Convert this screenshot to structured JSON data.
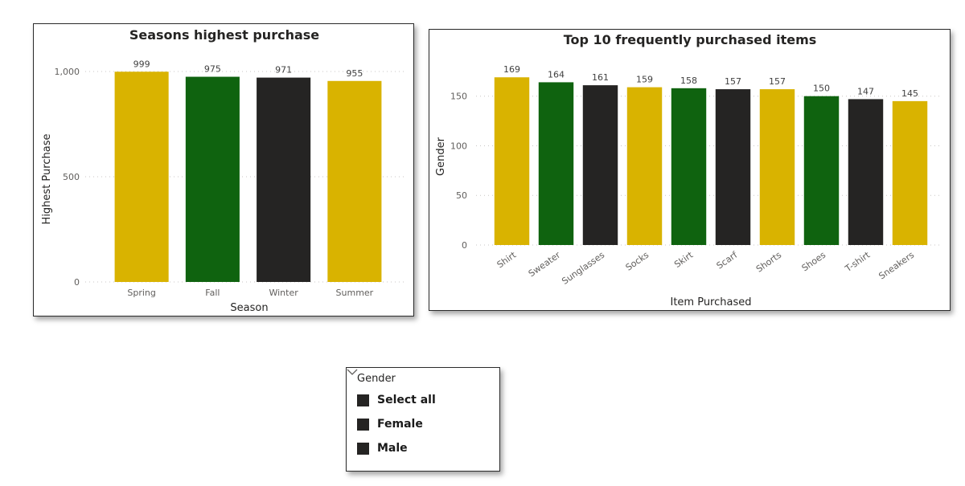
{
  "colors": {
    "gold": "#d9b300",
    "green": "#0f630f",
    "black": "#252423"
  },
  "chart_data": [
    {
      "type": "bar",
      "title": "Seasons highest purchase",
      "xlabel": "Season",
      "ylabel": "Highest Purchase",
      "categories": [
        "Spring",
        "Fall",
        "Winter",
        "Summer"
      ],
      "values": [
        999,
        975,
        971,
        955
      ],
      "data_labels": [
        "999",
        "975",
        "971",
        "955"
      ],
      "bar_colors": [
        "gold",
        "green",
        "black",
        "gold"
      ],
      "ylim": [
        0,
        1000
      ],
      "yticks": [
        0,
        500,
        1000
      ],
      "ytick_labels": [
        "0",
        "500",
        "1,000"
      ],
      "grid": true,
      "legend": "none"
    },
    {
      "type": "bar",
      "title": "Top 10 frequently purchased items",
      "xlabel": "Item Purchased",
      "ylabel": "Gender",
      "categories": [
        "Shirt",
        "Sweater",
        "Sunglasses",
        "Socks",
        "Skirt",
        "Scarf",
        "Shorts",
        "Shoes",
        "T-shirt",
        "Sneakers"
      ],
      "values": [
        169,
        164,
        161,
        159,
        158,
        157,
        157,
        150,
        147,
        145
      ],
      "data_labels": [
        "169",
        "164",
        "161",
        "159",
        "158",
        "157",
        "157",
        "150",
        "147",
        "145"
      ],
      "bar_colors": [
        "gold",
        "green",
        "black",
        "gold",
        "green",
        "black",
        "gold",
        "green",
        "black",
        "gold"
      ],
      "ylim": [
        0,
        170
      ],
      "yticks": [
        0,
        50,
        100,
        150
      ],
      "ytick_labels": [
        "0",
        "50",
        "100",
        "150"
      ],
      "grid": true,
      "legend": "none"
    }
  ],
  "slicer": {
    "title": "Gender",
    "items": [
      {
        "label": "Select all",
        "checked": true
      },
      {
        "label": "Female",
        "checked": true
      },
      {
        "label": "Male",
        "checked": true
      }
    ]
  }
}
